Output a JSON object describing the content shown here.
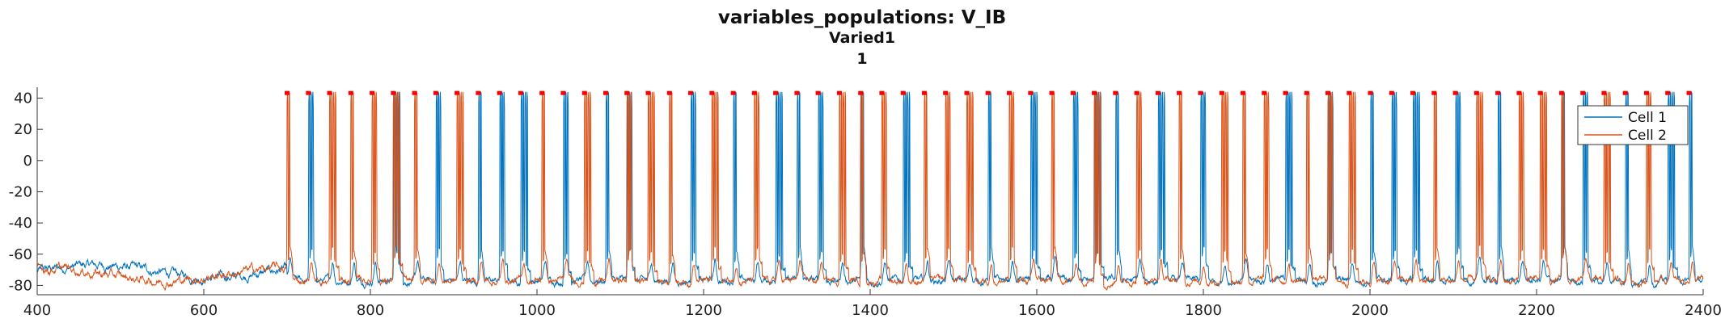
{
  "chart_data": {
    "type": "line",
    "title": "variables_populations: V_IB",
    "subtitle": "Varied1",
    "subtitle2": "1",
    "xlabel": "",
    "ylabel": "",
    "xlim": [
      400,
      2400
    ],
    "ylim": [
      -86,
      47
    ],
    "xticks": [
      400,
      600,
      800,
      1000,
      1200,
      1400,
      1600,
      1800,
      2000,
      2200,
      2400
    ],
    "yticks": [
      -80,
      -60,
      -40,
      -20,
      0,
      20,
      40
    ],
    "grid": false,
    "legend_position": "top-right",
    "series": [
      {
        "name": "Cell 1",
        "color": "#0072BD"
      },
      {
        "name": "Cell 2",
        "color": "#D95319"
      }
    ],
    "spike_onset": 700,
    "spike_period": 25.5,
    "spike_peak": 44,
    "resting_potential": -77,
    "marker_color": "#FF0000",
    "marker_y": 43
  }
}
